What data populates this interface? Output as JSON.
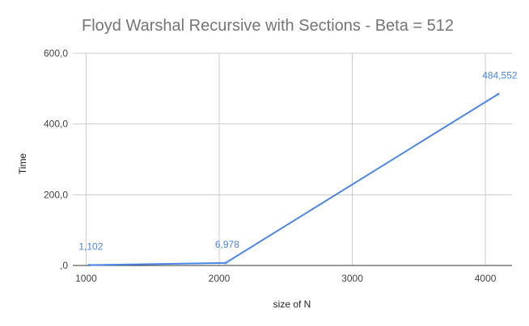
{
  "chart_data": {
    "type": "line",
    "title": "Floyd Warshal Recursive with Sections - Beta = 512",
    "xlabel": "size of N",
    "ylabel": "Time",
    "x_ticks": [
      1000,
      2000,
      3000,
      4000
    ],
    "x_tick_labels": [
      "1000",
      "2000",
      "3000",
      "4000"
    ],
    "y_ticks": [
      0,
      200,
      400,
      600
    ],
    "y_tick_labels": [
      ",0",
      "200,0",
      "400,0",
      "600,0"
    ],
    "xlim": [
      900,
      4200
    ],
    "ylim": [
      0,
      600
    ],
    "grid": true,
    "legend": "none",
    "series": [
      {
        "color": "#4a86e8",
        "points": [
          {
            "x": 1024,
            "y": 1.102,
            "label": "1,102"
          },
          {
            "x": 2048,
            "y": 6.978,
            "label": "6,978"
          },
          {
            "x": 4096,
            "y": 484.552,
            "label": "484,552"
          }
        ]
      }
    ]
  }
}
